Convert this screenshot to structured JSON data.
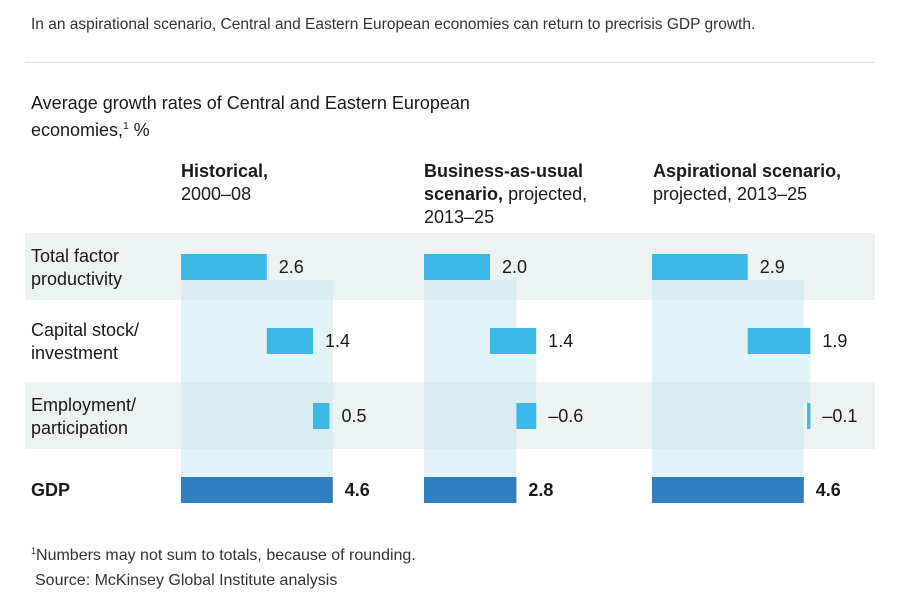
{
  "subtitle": "In an aspirational scenario, Central and Eastern European economies can return to precrisis GDP growth.",
  "chart_title": "Average growth rates of Central and Eastern European economies,",
  "chart_title_marker": "1",
  "chart_title_unit": "%",
  "colors": {
    "band": "#edf2f2",
    "component_bar": "#3bb8e8",
    "gdp_bar": "#2f7fc1",
    "connector": "#c9e9ef"
  },
  "chart_data": {
    "type": "bar",
    "subtype": "waterfall",
    "categories": [
      "Total factor productivity",
      "Capital stock/ investment",
      "Employment/ participation",
      "GDP"
    ],
    "category_lines": [
      [
        "Total factor",
        "productivity"
      ],
      [
        "Capital stock/",
        "investment"
      ],
      [
        "Employment/",
        "participation"
      ],
      [
        "GDP"
      ]
    ],
    "panels": [
      {
        "heading_bold": "Historical,",
        "heading_rest": [
          "2000–08"
        ],
        "values": [
          2.6,
          1.4,
          0.5,
          4.6
        ],
        "labels": [
          "2.6",
          "1.4",
          "0.5",
          "4.6"
        ]
      },
      {
        "heading_bold": "Business-as-usual scenario,",
        "heading_rest": [
          "projected,",
          "2013–25"
        ],
        "values": [
          2.0,
          1.4,
          -0.6,
          2.8
        ],
        "labels": [
          "2.0",
          "1.4",
          "–0.6",
          "2.8"
        ]
      },
      {
        "heading_bold": "Aspirational scenario,",
        "heading_rest": [
          "projected, 2013–25"
        ],
        "values": [
          2.9,
          1.9,
          -0.1,
          4.6
        ],
        "labels": [
          "2.9",
          "1.9",
          "–0.1",
          "4.6"
        ]
      }
    ],
    "total_category": "GDP"
  },
  "footnote_marker": "1",
  "footnote": "Numbers may not sum to totals, because of rounding.",
  "source": "Source: McKinsey Global Institute analysis"
}
